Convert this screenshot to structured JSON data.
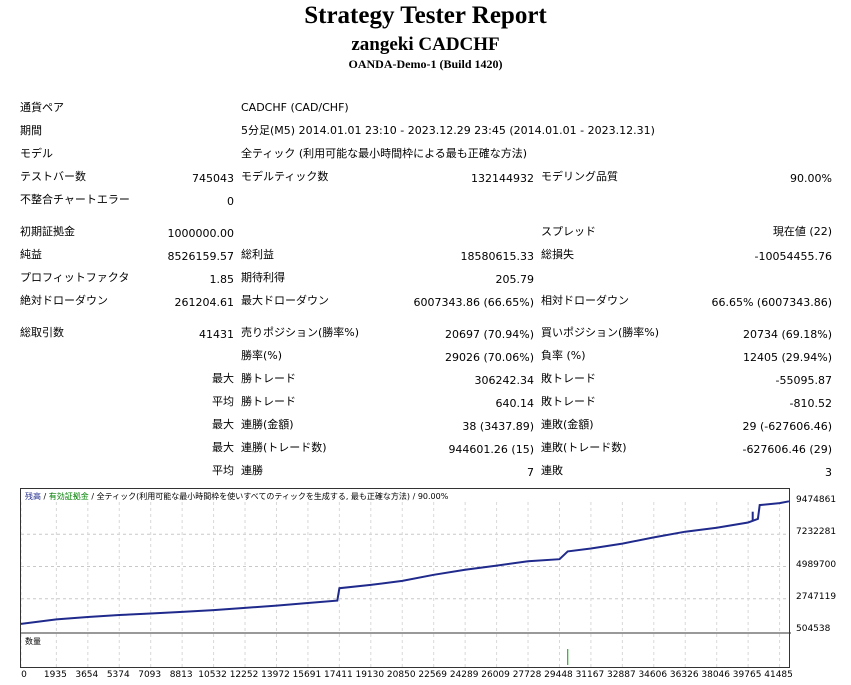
{
  "header": {
    "title": "Strategy Tester Report",
    "subtitle": "zangeki CADCHF",
    "server": "OANDA-Demo-1 (Build 1420)"
  },
  "summary": {
    "currency_pair_label": "通貨ペア",
    "currency_pair_value": "CADCHF (CAD/CHF)",
    "period_label": "期間",
    "period_value": "5分足(M5) 2014.01.01 23:10 - 2023.12.29 23:45 (2014.01.01 - 2023.12.31)",
    "model_label": "モデル",
    "model_value": "全ティック (利用可能な最小時間枠による最も正確な方法)",
    "bars_label": "テストバー数",
    "bars_value": "745043",
    "ticks_label": "モデルティック数",
    "ticks_value": "132144932",
    "quality_label": "モデリング品質",
    "quality_value": "90.00%",
    "errors_label": "不整合チャートエラー",
    "errors_value": "0",
    "deposit_label": "初期証拠金",
    "deposit_value": "1000000.00",
    "spread_label": "スプレッド",
    "spread_value": "現在値 (22)",
    "net_label": "純益",
    "net_value": "8526159.57",
    "gross_profit_label": "総利益",
    "gross_profit_value": "18580615.33",
    "gross_loss_label": "総損失",
    "gross_loss_value": "-10054455.76",
    "pf_label": "プロフィットファクタ",
    "pf_value": "1.85",
    "expected_label": "期待利得",
    "expected_value": "205.79",
    "abs_dd_label": "絶対ドローダウン",
    "abs_dd_value": "261204.61",
    "max_dd_label": "最大ドローダウン",
    "max_dd_value": "6007343.86 (66.65%)",
    "rel_dd_label": "相対ドローダウン",
    "rel_dd_value": "66.65% (6007343.86)",
    "total_trades_label": "総取引数",
    "total_trades_value": "41431",
    "short_label": "売りポジション(勝率%)",
    "short_value": "20697 (70.94%)",
    "long_label": "買いポジション(勝率%)",
    "long_value": "20734 (69.18%)",
    "win_rate_label": "勝率(%)",
    "win_rate_value": "29026 (70.06%)",
    "loss_rate_label": "負率 (%)",
    "loss_rate_value": "12405 (29.94%)",
    "max_word": "最大",
    "avg_word": "平均",
    "largest_win_label": "勝トレード",
    "largest_win_value": "306242.34",
    "largest_loss_label": "敗トレード",
    "largest_loss_value": "-55095.87",
    "avg_win_label": "勝トレード",
    "avg_win_value": "640.14",
    "avg_loss_label": "敗トレード",
    "avg_loss_value": "-810.52",
    "cons_wins_money_label": "連勝(金額)",
    "cons_wins_money_value": "38 (3437.89)",
    "cons_losses_money_label": "連敗(金額)",
    "cons_losses_money_value": "29 (-627606.46)",
    "cons_profit_label": "連勝(トレード数)",
    "cons_profit_value": "944601.26 (15)",
    "cons_loss_label": "連敗(トレード数)",
    "cons_loss_value": "-627606.46 (29)",
    "avg_cons_wins_label": "連勝",
    "avg_cons_wins_value": "7",
    "avg_cons_losses_label": "連敗",
    "avg_cons_losses_value": "3"
  },
  "chart_legend": {
    "balance": "残高",
    "sep1": " / ",
    "equity": "有効証拠金",
    "sep2": " / ",
    "model": "全ティック(利用可能な最小時間枠を使いすべてのティックを生成する, 最も正確な方法)",
    "sep3": " / ",
    "quality": "90.00%",
    "volume": "数量"
  },
  "colors": {
    "balance_line": "#1f2a8c",
    "volume_bar": "#00a000",
    "legend_equity": "#008000",
    "legend_balance": "#1f2a8c"
  },
  "chart_data": {
    "type": "line",
    "title": "",
    "xlabel": "",
    "ylabel": "",
    "y_ticks": [
      "9474861",
      "7232281",
      "4989700",
      "2747119",
      "504538"
    ],
    "x_ticks": [
      "0",
      "1935",
      "3654",
      "5374",
      "7093",
      "8813",
      "10532",
      "12252",
      "13972",
      "15691",
      "17411",
      "19130",
      "20850",
      "22569",
      "24289",
      "26009",
      "27728",
      "29448",
      "31167",
      "32887",
      "34606",
      "36326",
      "38046",
      "39765",
      "41485"
    ],
    "ylim": [
      504538,
      9474861
    ],
    "xlim": [
      0,
      42000
    ],
    "grid": true,
    "series": [
      {
        "x": [
          0,
          1935,
          3654,
          5374,
          7093,
          8813,
          10532,
          12252,
          13972,
          15691,
          17300,
          17411,
          19130,
          20850,
          22569,
          24289,
          26009,
          27728,
          29448,
          29900,
          31167,
          32887,
          34606,
          36326,
          38046,
          39765,
          40300,
          40400,
          41485,
          42000
        ],
        "y": [
          1000000,
          1310000,
          1480000,
          1620000,
          1720000,
          1830000,
          1960000,
          2110000,
          2270000,
          2450000,
          2620000,
          3480000,
          3710000,
          3990000,
          4410000,
          4760000,
          5050000,
          5350000,
          5500000,
          6040000,
          6240000,
          6580000,
          7010000,
          7410000,
          7690000,
          8050000,
          8300000,
          9260000,
          9400000,
          9526159
        ]
      }
    ],
    "volume": {
      "x": [
        29900
      ],
      "values": [
        1
      ]
    }
  }
}
